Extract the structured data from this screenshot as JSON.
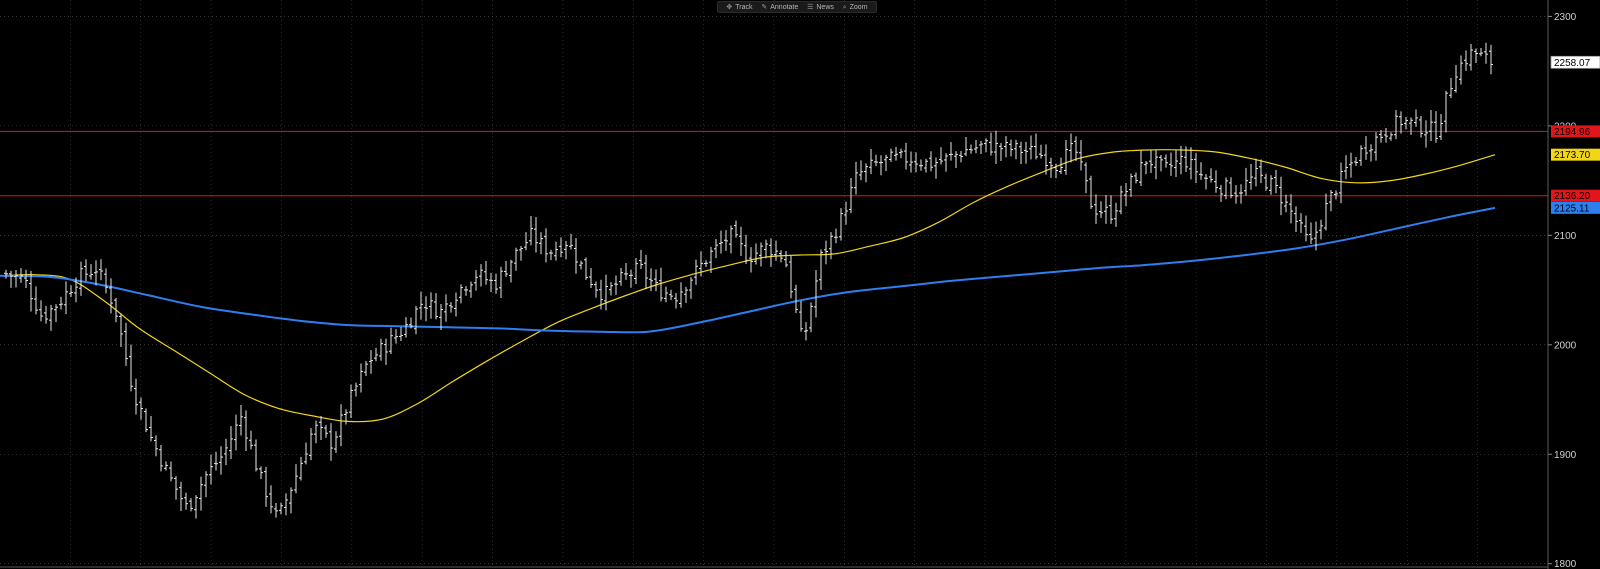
{
  "toolbar": {
    "items": [
      {
        "label": "Track",
        "icon": "crosshair-icon"
      },
      {
        "label": "Annotate",
        "icon": "pencil-icon"
      },
      {
        "label": "News",
        "icon": "news-icon"
      },
      {
        "label": "Zoom",
        "icon": "magnifier-icon"
      }
    ]
  },
  "chart_data": {
    "type": "line",
    "title": "",
    "ylim": [
      1797,
      2315
    ],
    "y_ticks": [
      "2300",
      "2200",
      "2100",
      "2000",
      "1900",
      "1800"
    ],
    "y_tick_values": [
      2300,
      2200,
      2100,
      2000,
      1900,
      1800
    ],
    "grid": true,
    "last_price": {
      "value": 2258.07,
      "label": "2258.07",
      "color": "#ffffff",
      "text_color": "#000000"
    },
    "horizontal_lines": [
      {
        "value": 2194.96,
        "label": "2194.96",
        "color": "#e0161c",
        "text_color": "#000000"
      },
      {
        "value": 2136.2,
        "label": "2136.20",
        "color": "#e0161c",
        "text_color": "#000000"
      }
    ],
    "moving_averages": [
      {
        "label": "2173.70",
        "last": 2173.7,
        "color": "#f0d616",
        "text_color": "#000000",
        "values": [
          2063,
          2064,
          2060,
          2040,
          2015,
          1995,
          1975,
          1955,
          1942,
          1935,
          1930,
          1932,
          1946,
          1966,
          1985,
          2003,
          2020,
          2033,
          2045,
          2056,
          2065,
          2073,
          2080,
          2082,
          2083,
          2090,
          2098,
          2112,
          2130,
          2145,
          2158,
          2170,
          2176,
          2178,
          2178,
          2176,
          2170,
          2162,
          2152,
          2148,
          2150,
          2156,
          2164,
          2173.7
        ]
      },
      {
        "label": "2125.11",
        "last": 2125.11,
        "color": "#2d7ff0",
        "text_color": "#000000",
        "values": [
          2063,
          2062,
          2055,
          2045,
          2035,
          2028,
          2022,
          2018,
          2017,
          2016,
          2015,
          2013,
          2012,
          2012,
          2020,
          2030,
          2040,
          2048,
          2053,
          2058,
          2062,
          2066,
          2070,
          2073,
          2077,
          2082,
          2088,
          2096,
          2106,
          2116,
          2125.11
        ]
      }
    ],
    "price_anchors": [
      2065,
      2060,
      2025,
      2040,
      2062,
      2070,
      2035,
      1960,
      1915,
      1880,
      1850,
      1880,
      1900,
      1935,
      1880,
      1840,
      1880,
      1925,
      1910,
      1950,
      1985,
      2000,
      2015,
      2040,
      2030,
      2050,
      2065,
      2055,
      2080,
      2100,
      2085,
      2095,
      2065,
      2045,
      2060,
      2070,
      2050,
      2045,
      2065,
      2085,
      2100,
      2080,
      2090,
      2080,
      2000,
      2080,
      2110,
      2155,
      2165,
      2170,
      2170,
      2165,
      2170,
      2178,
      2182,
      2180,
      2178,
      2175,
      2165,
      2180,
      2125,
      2120,
      2145,
      2170,
      2160,
      2170,
      2155,
      2145,
      2140,
      2155,
      2145,
      2120,
      2090,
      2130,
      2160,
      2180,
      2193,
      2205,
      2200,
      2195,
      2250,
      2268,
      2258.07
    ]
  }
}
